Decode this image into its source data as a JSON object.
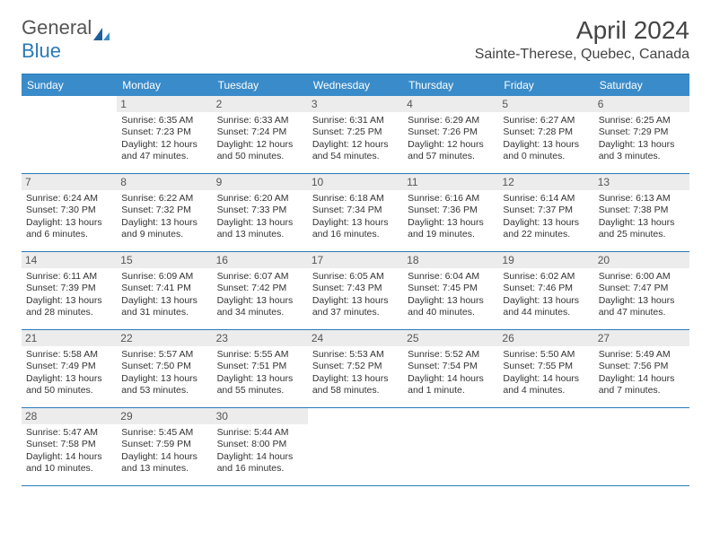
{
  "brand": {
    "part1": "General",
    "part2": "Blue"
  },
  "title": "April 2024",
  "location": "Sainte-Therese, Quebec, Canada",
  "colors": {
    "header_bg": "#3a8bc9",
    "header_text": "#ffffff",
    "rule": "#2a7ab9",
    "daynum_bg": "#ececec",
    "text": "#333333"
  },
  "typography": {
    "title_fontsize": 28,
    "location_fontsize": 16,
    "header_fontsize": 12,
    "body_fontsize": 10.5,
    "font_family": "Arial"
  },
  "day_names": [
    "Sunday",
    "Monday",
    "Tuesday",
    "Wednesday",
    "Thursday",
    "Friday",
    "Saturday"
  ],
  "weeks": [
    [
      {
        "n": "",
        "sunrise": "",
        "sunset": "",
        "daylight": ""
      },
      {
        "n": "1",
        "sunrise": "Sunrise: 6:35 AM",
        "sunset": "Sunset: 7:23 PM",
        "daylight": "Daylight: 12 hours and 47 minutes."
      },
      {
        "n": "2",
        "sunrise": "Sunrise: 6:33 AM",
        "sunset": "Sunset: 7:24 PM",
        "daylight": "Daylight: 12 hours and 50 minutes."
      },
      {
        "n": "3",
        "sunrise": "Sunrise: 6:31 AM",
        "sunset": "Sunset: 7:25 PM",
        "daylight": "Daylight: 12 hours and 54 minutes."
      },
      {
        "n": "4",
        "sunrise": "Sunrise: 6:29 AM",
        "sunset": "Sunset: 7:26 PM",
        "daylight": "Daylight: 12 hours and 57 minutes."
      },
      {
        "n": "5",
        "sunrise": "Sunrise: 6:27 AM",
        "sunset": "Sunset: 7:28 PM",
        "daylight": "Daylight: 13 hours and 0 minutes."
      },
      {
        "n": "6",
        "sunrise": "Sunrise: 6:25 AM",
        "sunset": "Sunset: 7:29 PM",
        "daylight": "Daylight: 13 hours and 3 minutes."
      }
    ],
    [
      {
        "n": "7",
        "sunrise": "Sunrise: 6:24 AM",
        "sunset": "Sunset: 7:30 PM",
        "daylight": "Daylight: 13 hours and 6 minutes."
      },
      {
        "n": "8",
        "sunrise": "Sunrise: 6:22 AM",
        "sunset": "Sunset: 7:32 PM",
        "daylight": "Daylight: 13 hours and 9 minutes."
      },
      {
        "n": "9",
        "sunrise": "Sunrise: 6:20 AM",
        "sunset": "Sunset: 7:33 PM",
        "daylight": "Daylight: 13 hours and 13 minutes."
      },
      {
        "n": "10",
        "sunrise": "Sunrise: 6:18 AM",
        "sunset": "Sunset: 7:34 PM",
        "daylight": "Daylight: 13 hours and 16 minutes."
      },
      {
        "n": "11",
        "sunrise": "Sunrise: 6:16 AM",
        "sunset": "Sunset: 7:36 PM",
        "daylight": "Daylight: 13 hours and 19 minutes."
      },
      {
        "n": "12",
        "sunrise": "Sunrise: 6:14 AM",
        "sunset": "Sunset: 7:37 PM",
        "daylight": "Daylight: 13 hours and 22 minutes."
      },
      {
        "n": "13",
        "sunrise": "Sunrise: 6:13 AM",
        "sunset": "Sunset: 7:38 PM",
        "daylight": "Daylight: 13 hours and 25 minutes."
      }
    ],
    [
      {
        "n": "14",
        "sunrise": "Sunrise: 6:11 AM",
        "sunset": "Sunset: 7:39 PM",
        "daylight": "Daylight: 13 hours and 28 minutes."
      },
      {
        "n": "15",
        "sunrise": "Sunrise: 6:09 AM",
        "sunset": "Sunset: 7:41 PM",
        "daylight": "Daylight: 13 hours and 31 minutes."
      },
      {
        "n": "16",
        "sunrise": "Sunrise: 6:07 AM",
        "sunset": "Sunset: 7:42 PM",
        "daylight": "Daylight: 13 hours and 34 minutes."
      },
      {
        "n": "17",
        "sunrise": "Sunrise: 6:05 AM",
        "sunset": "Sunset: 7:43 PM",
        "daylight": "Daylight: 13 hours and 37 minutes."
      },
      {
        "n": "18",
        "sunrise": "Sunrise: 6:04 AM",
        "sunset": "Sunset: 7:45 PM",
        "daylight": "Daylight: 13 hours and 40 minutes."
      },
      {
        "n": "19",
        "sunrise": "Sunrise: 6:02 AM",
        "sunset": "Sunset: 7:46 PM",
        "daylight": "Daylight: 13 hours and 44 minutes."
      },
      {
        "n": "20",
        "sunrise": "Sunrise: 6:00 AM",
        "sunset": "Sunset: 7:47 PM",
        "daylight": "Daylight: 13 hours and 47 minutes."
      }
    ],
    [
      {
        "n": "21",
        "sunrise": "Sunrise: 5:58 AM",
        "sunset": "Sunset: 7:49 PM",
        "daylight": "Daylight: 13 hours and 50 minutes."
      },
      {
        "n": "22",
        "sunrise": "Sunrise: 5:57 AM",
        "sunset": "Sunset: 7:50 PM",
        "daylight": "Daylight: 13 hours and 53 minutes."
      },
      {
        "n": "23",
        "sunrise": "Sunrise: 5:55 AM",
        "sunset": "Sunset: 7:51 PM",
        "daylight": "Daylight: 13 hours and 55 minutes."
      },
      {
        "n": "24",
        "sunrise": "Sunrise: 5:53 AM",
        "sunset": "Sunset: 7:52 PM",
        "daylight": "Daylight: 13 hours and 58 minutes."
      },
      {
        "n": "25",
        "sunrise": "Sunrise: 5:52 AM",
        "sunset": "Sunset: 7:54 PM",
        "daylight": "Daylight: 14 hours and 1 minute."
      },
      {
        "n": "26",
        "sunrise": "Sunrise: 5:50 AM",
        "sunset": "Sunset: 7:55 PM",
        "daylight": "Daylight: 14 hours and 4 minutes."
      },
      {
        "n": "27",
        "sunrise": "Sunrise: 5:49 AM",
        "sunset": "Sunset: 7:56 PM",
        "daylight": "Daylight: 14 hours and 7 minutes."
      }
    ],
    [
      {
        "n": "28",
        "sunrise": "Sunrise: 5:47 AM",
        "sunset": "Sunset: 7:58 PM",
        "daylight": "Daylight: 14 hours and 10 minutes."
      },
      {
        "n": "29",
        "sunrise": "Sunrise: 5:45 AM",
        "sunset": "Sunset: 7:59 PM",
        "daylight": "Daylight: 14 hours and 13 minutes."
      },
      {
        "n": "30",
        "sunrise": "Sunrise: 5:44 AM",
        "sunset": "Sunset: 8:00 PM",
        "daylight": "Daylight: 14 hours and 16 minutes."
      },
      {
        "n": "",
        "sunrise": "",
        "sunset": "",
        "daylight": ""
      },
      {
        "n": "",
        "sunrise": "",
        "sunset": "",
        "daylight": ""
      },
      {
        "n": "",
        "sunrise": "",
        "sunset": "",
        "daylight": ""
      },
      {
        "n": "",
        "sunrise": "",
        "sunset": "",
        "daylight": ""
      }
    ]
  ]
}
